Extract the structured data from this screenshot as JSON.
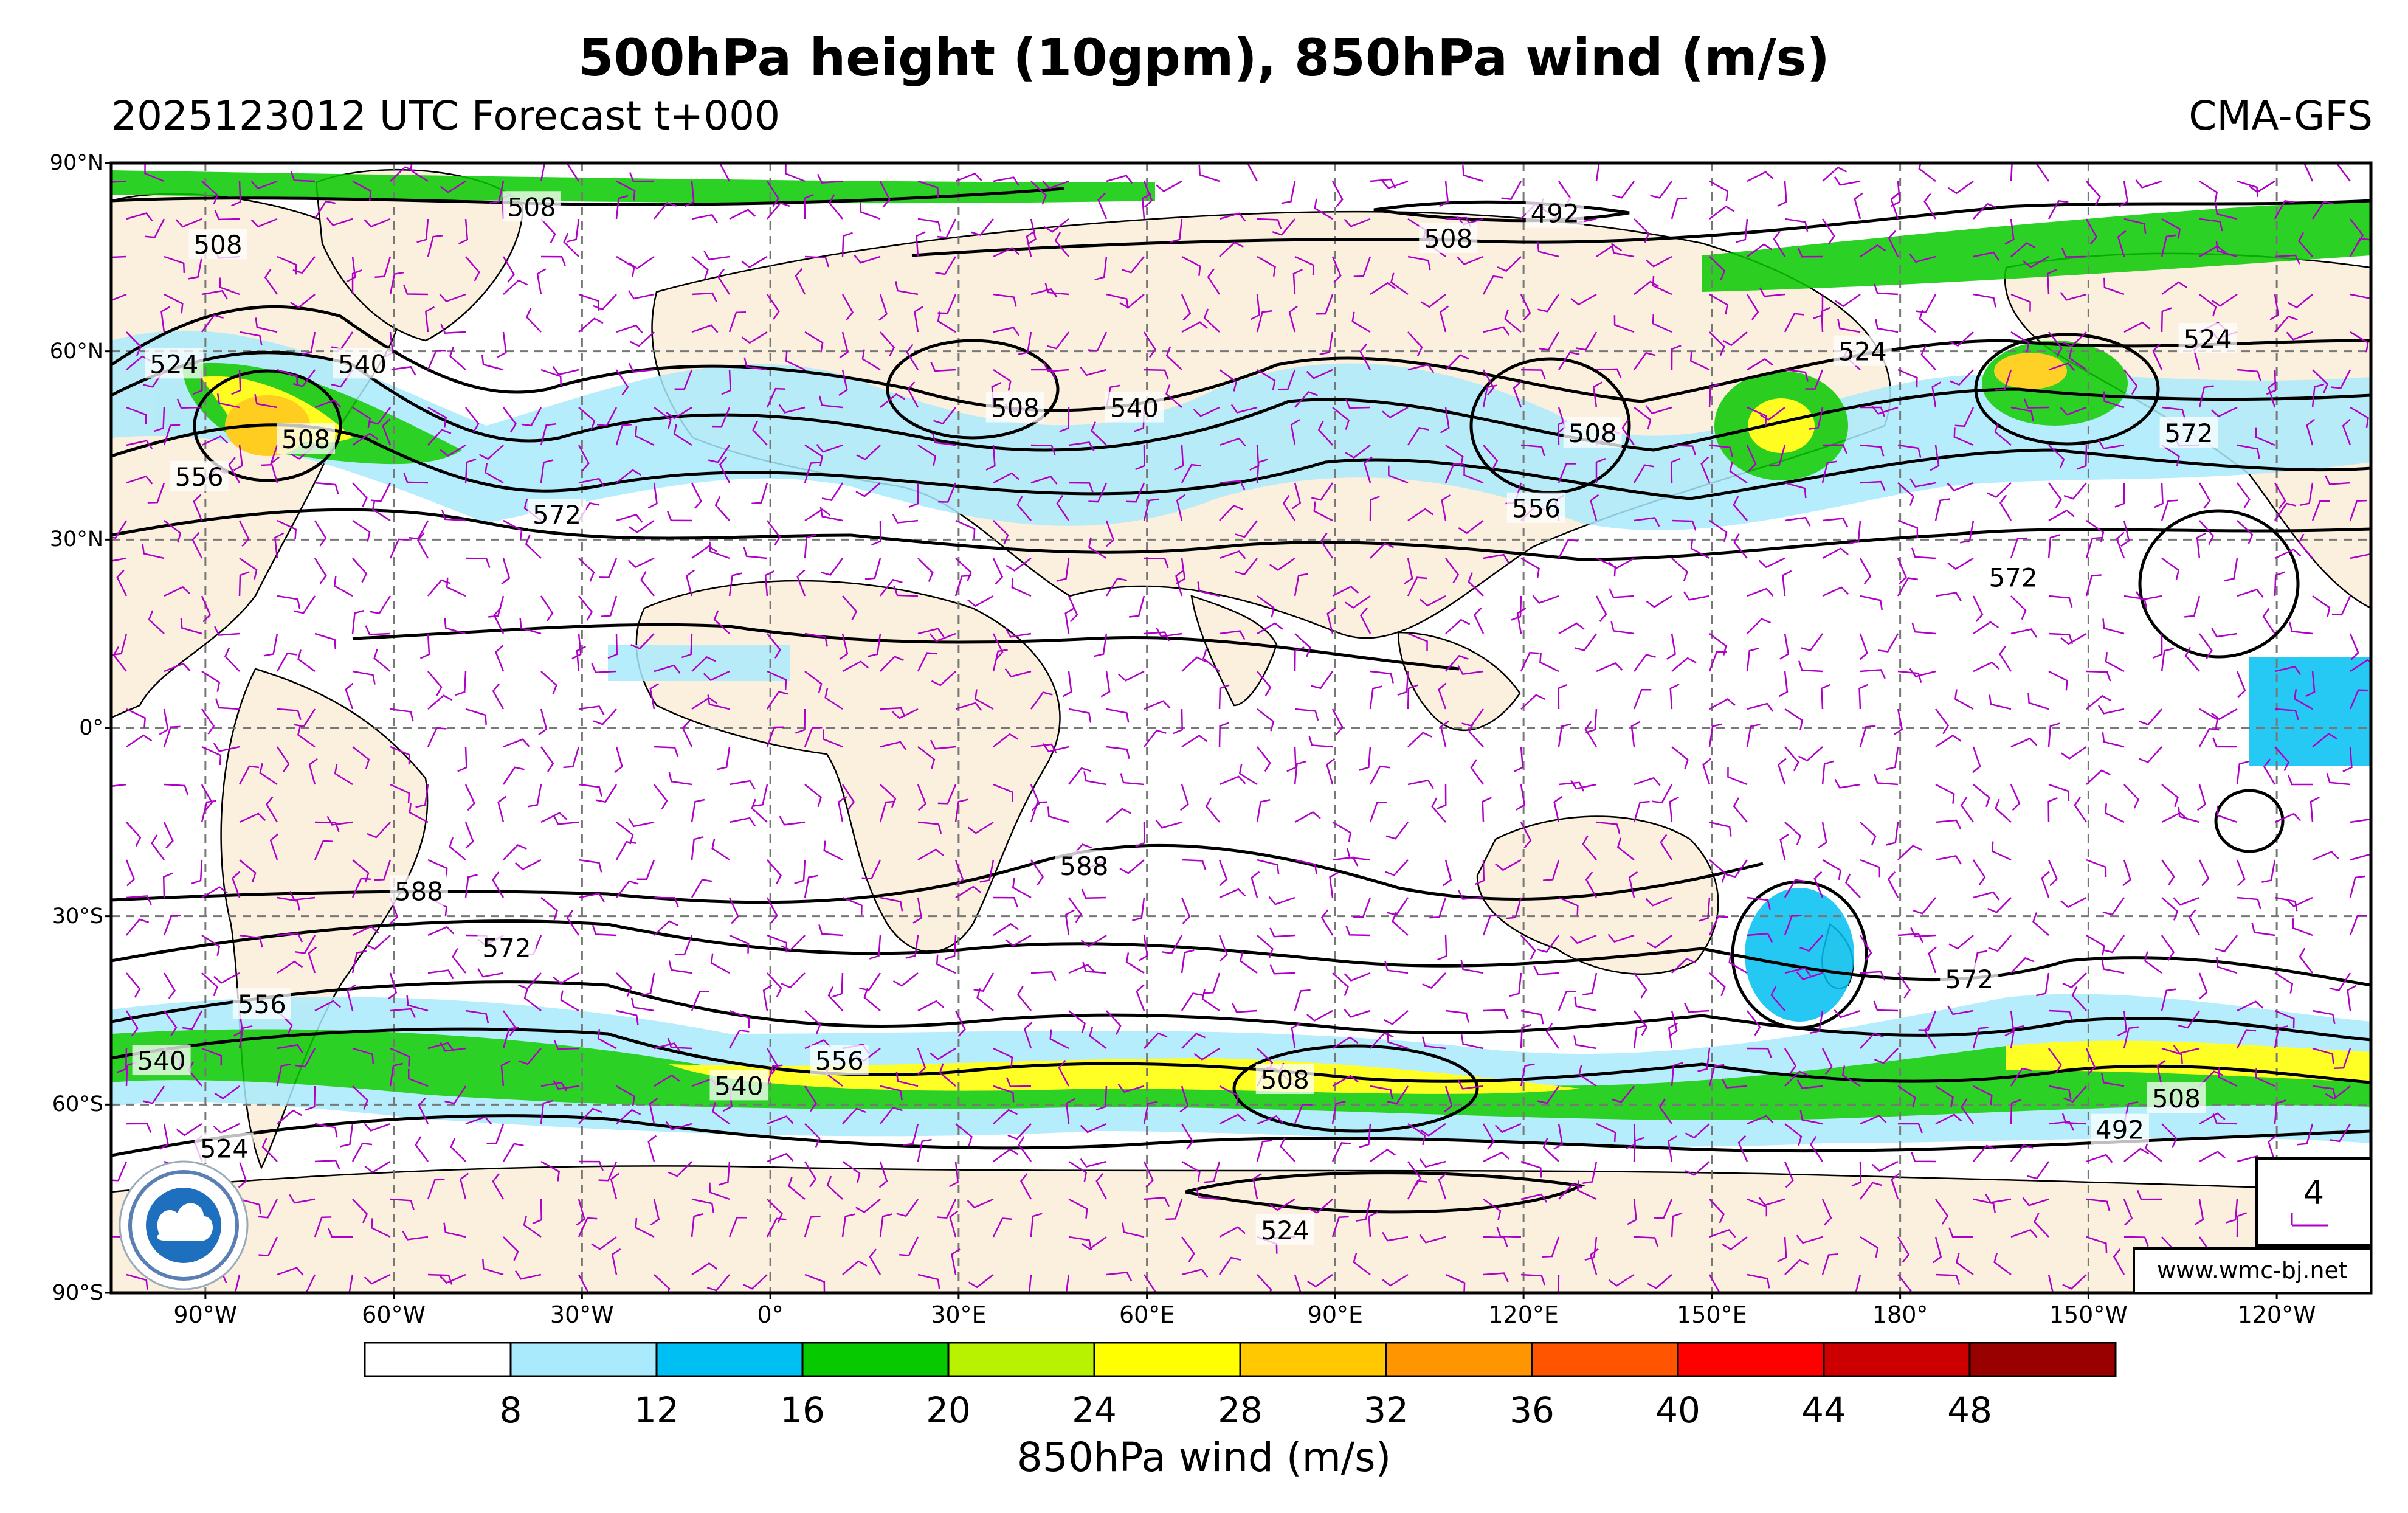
{
  "title": "500hPa height (10gpm), 850hPa wind (m/s)",
  "subtitle_left": "2025123012 UTC Forecast t+000",
  "subtitle_right": "CMA-GFS",
  "website": "www.wmc-bj.net",
  "barb_legend_value": "4",
  "lat_labels": [
    "90°N",
    "60°N",
    "30°N",
    "0°",
    "30°S",
    "60°S",
    "90°S"
  ],
  "lon_labels": [
    "90°W",
    "60°W",
    "30°W",
    "0°",
    "30°E",
    "60°E",
    "90°E",
    "120°E",
    "150°E",
    "180°",
    "150°W",
    "120°W"
  ],
  "colorbar": {
    "label": "850hPa wind (m/s)",
    "ticks": [
      "8",
      "12",
      "16",
      "20",
      "24",
      "28",
      "32",
      "36",
      "40",
      "44",
      "48"
    ],
    "colors": [
      "#ffffff",
      "#a9eafc",
      "#00bff2",
      "#07c900",
      "#b8f200",
      "#ffff00",
      "#ffc800",
      "#ff9500",
      "#ff5500",
      "#ff0000",
      "#cc0000",
      "#990000"
    ]
  },
  "contour_labels": [
    {
      "text": "508",
      "lon": -38,
      "lat": 83
    },
    {
      "text": "508",
      "lon": -88,
      "lat": 77
    },
    {
      "text": "492",
      "lon": 125,
      "lat": 82
    },
    {
      "text": "508",
      "lon": 108,
      "lat": 78
    },
    {
      "text": "524",
      "lon": -95,
      "lat": 58
    },
    {
      "text": "540",
      "lon": -65,
      "lat": 58
    },
    {
      "text": "508",
      "lon": -74,
      "lat": 46
    },
    {
      "text": "556",
      "lon": -91,
      "lat": 40
    },
    {
      "text": "508",
      "lon": 39,
      "lat": 51
    },
    {
      "text": "540",
      "lon": 58,
      "lat": 51
    },
    {
      "text": "572",
      "lon": -34,
      "lat": 34
    },
    {
      "text": "508",
      "lon": 131,
      "lat": 47
    },
    {
      "text": "556",
      "lon": 122,
      "lat": 35
    },
    {
      "text": "524",
      "lon": 174,
      "lat": 60
    },
    {
      "text": "524",
      "lon": -131,
      "lat": 62
    },
    {
      "text": "572",
      "lon": -134,
      "lat": 47
    },
    {
      "text": "572",
      "lon": -162,
      "lat": 24
    },
    {
      "text": "588",
      "lon": -56,
      "lat": -26
    },
    {
      "text": "588",
      "lon": 50,
      "lat": -22
    },
    {
      "text": "572",
      "lon": -42,
      "lat": -35
    },
    {
      "text": "556",
      "lon": -81,
      "lat": -44
    },
    {
      "text": "540",
      "lon": -97,
      "lat": -53
    },
    {
      "text": "556",
      "lon": 11,
      "lat": -53
    },
    {
      "text": "540",
      "lon": -5,
      "lat": -57
    },
    {
      "text": "508",
      "lon": 82,
      "lat": -56
    },
    {
      "text": "524",
      "lon": -87,
      "lat": -67
    },
    {
      "text": "524",
      "lon": 82,
      "lat": -80
    },
    {
      "text": "572",
      "lon": -169,
      "lat": -40
    },
    {
      "text": "508",
      "lon": -136,
      "lat": -59
    },
    {
      "text": "492",
      "lon": -145,
      "lat": -64
    }
  ]
}
